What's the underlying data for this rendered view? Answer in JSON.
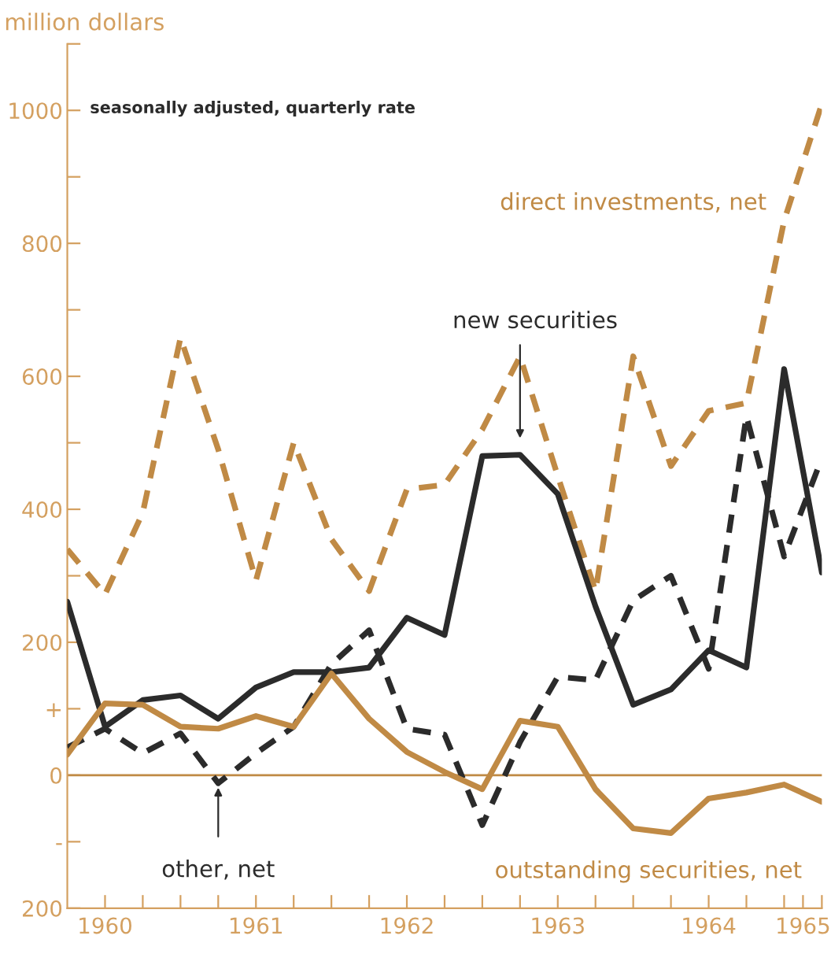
{
  "chart_data": {
    "type": "line",
    "ylabel": "million dollars",
    "annotations": [
      "seasonally adjusted, quarterly rate",
      {
        "text": "other, net",
        "x": 1961.25,
        "y": -12
      }
    ],
    "x": [
      1960.25,
      1960.5,
      1960.75,
      1961.0,
      1961.25,
      1961.5,
      1961.75,
      1962.0,
      1962.25,
      1962.5,
      1962.75,
      1963.0,
      1963.25,
      1963.5,
      1963.75,
      1964.0,
      1964.25,
      1964.5,
      1964.75,
      1965.0,
      1965.25
    ],
    "series": [
      {
        "name": "direct investments, net",
        "color": "#c08a45",
        "line_style": "dashed",
        "values": [
          340,
          272,
          395,
          658,
          490,
          293,
          500,
          355,
          277,
          430,
          437,
          520,
          630,
          450,
          277,
          630,
          465,
          548,
          560,
          834,
          1010
        ]
      },
      {
        "name": "new securities",
        "color": "#2b2b2b",
        "line_style": "solid",
        "values": [
          261,
          73,
          113,
          120,
          85,
          132,
          155,
          155,
          162,
          237,
          211,
          480,
          482,
          423,
          254,
          106,
          129,
          188,
          162,
          611,
          305
        ]
      },
      {
        "color": "#2b2b2b",
        "line_style": "dashed",
        "values": [
          42,
          70,
          33,
          63,
          -12,
          33,
          73,
          167,
          218,
          70,
          61,
          -75,
          50,
          148,
          143,
          263,
          300,
          160,
          540,
          329,
          477
        ]
      },
      {
        "name": "outstanding securities, net",
        "color": "#c08a45",
        "line_style": "solid",
        "values": [
          31,
          108,
          106,
          73,
          70,
          89,
          73,
          153,
          85,
          35,
          5,
          -21,
          82,
          73,
          -21,
          -80,
          -87,
          -35,
          -26,
          -14,
          -40
        ]
      }
    ],
    "xlim": [
      1960.25,
      1965.25
    ],
    "xticks": [
      {
        "value": 1960.5,
        "label": "1960"
      },
      {
        "value": 1960.75,
        "label": null
      },
      {
        "value": 1961.0,
        "label": null
      },
      {
        "value": 1961.25,
        "label": null
      },
      {
        "value": 1961.5,
        "label": "1961"
      },
      {
        "value": 1961.75,
        "label": null
      },
      {
        "value": 1962.0,
        "label": null
      },
      {
        "value": 1962.25,
        "label": null
      },
      {
        "value": 1962.5,
        "label": "1962"
      },
      {
        "value": 1962.75,
        "label": null
      },
      {
        "value": 1963.0,
        "label": null
      },
      {
        "value": 1963.25,
        "label": null
      },
      {
        "value": 1963.5,
        "label": "1963"
      },
      {
        "value": 1963.75,
        "label": null
      },
      {
        "value": 1964.0,
        "label": null
      },
      {
        "value": 1964.25,
        "label": null
      },
      {
        "value": 1964.5,
        "label": "1964"
      },
      {
        "value": 1964.75,
        "label": null
      },
      {
        "value": 1965.0,
        "label": null
      },
      {
        "value": 1965.125,
        "label": "1965"
      },
      {
        "value": 1965.25,
        "label": null
      }
    ],
    "ylim": [
      -200,
      1100
    ],
    "yticks": [
      {
        "value": -200,
        "label": "200"
      },
      {
        "value": -100,
        "label": "-"
      },
      0,
      {
        "value": 100,
        "label": "+"
      },
      200,
      {
        "value": 300,
        "label": null
      },
      400,
      {
        "value": 500,
        "label": null
      },
      600,
      {
        "value": 700,
        "label": null
      },
      800,
      {
        "value": 900,
        "label": null
      },
      1000,
      {
        "value": 1100,
        "label": null
      }
    ],
    "ref_lines": [
      {
        "axis": "y",
        "value": 0,
        "color": "#c08a45"
      }
    ],
    "grid": false,
    "legend": false,
    "marker": "none"
  }
}
